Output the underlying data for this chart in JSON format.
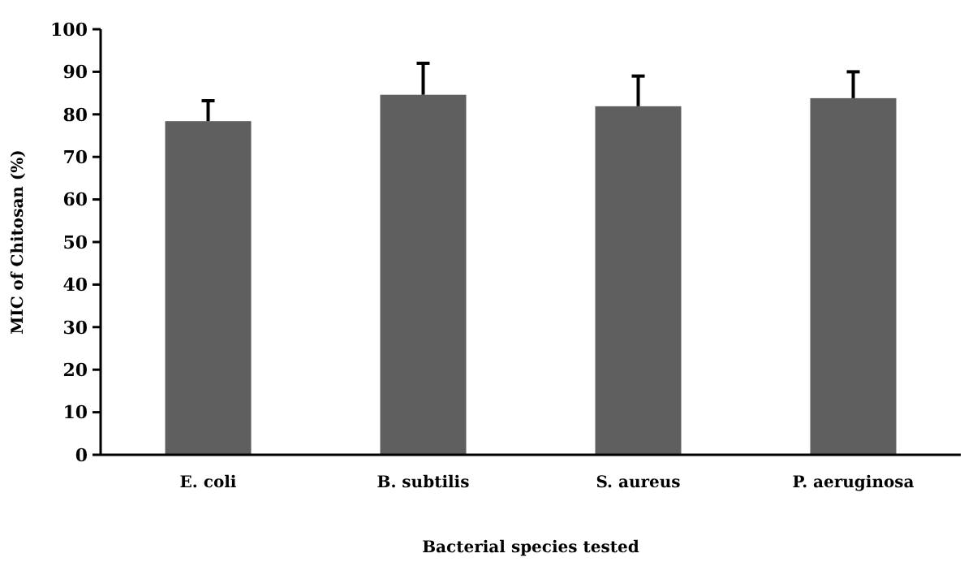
{
  "chart_data": {
    "type": "bar",
    "xlabel": "Bacterial  species tested",
    "ylabel": "MIC of Chitosan  (%)",
    "categories": [
      "E. coli",
      "B. subtilis",
      "S. aureus",
      "P. aeruginosa"
    ],
    "values": [
      78.4,
      84.6,
      81.9,
      83.8
    ],
    "errors": [
      [
        78.4,
        83.2
      ],
      [
        84.6,
        92
      ],
      [
        81.9,
        89
      ],
      [
        83.8,
        90
      ]
    ],
    "color": "#5f5f5f",
    "ylim": [
      0,
      100
    ],
    "yticks": [
      0,
      10,
      20,
      30,
      40,
      50,
      60,
      70,
      80,
      90,
      100
    ],
    "grid": false
  }
}
